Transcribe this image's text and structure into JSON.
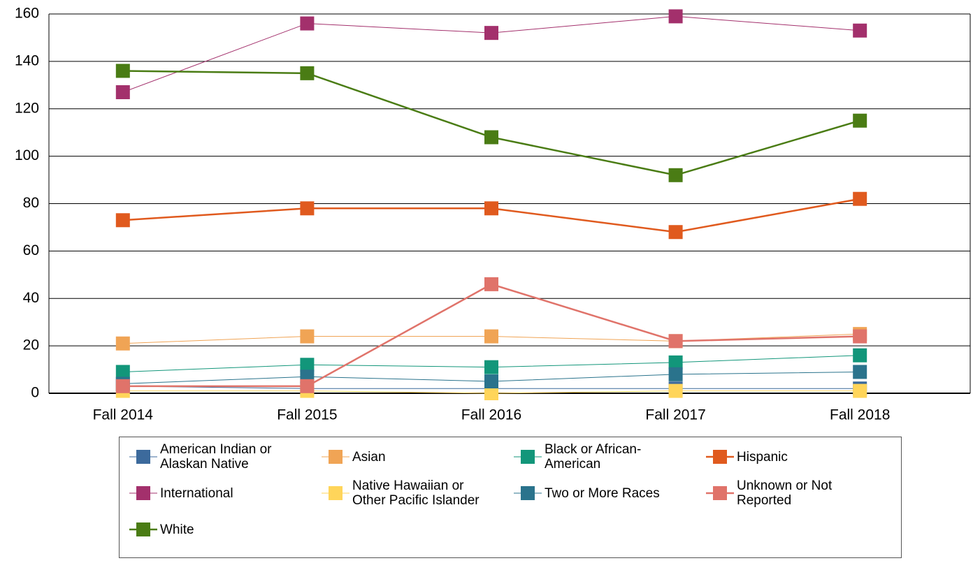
{
  "chart_data": {
    "type": "line",
    "categories": [
      "Fall 2014",
      "Fall 2015",
      "Fall 2016",
      "Fall 2017",
      "Fall 2018"
    ],
    "ylim": [
      0,
      160
    ],
    "yticks": [
      0,
      20,
      40,
      60,
      80,
      100,
      120,
      140,
      160
    ],
    "grid": true,
    "series": [
      {
        "name": "American Indian or Alaskan Native",
        "color": "#3c6a9c",
        "line_width": 1,
        "values": [
          3,
          2,
          2,
          2,
          2
        ]
      },
      {
        "name": "Asian",
        "color": "#f0a455",
        "line_width": 1,
        "values": [
          21,
          24,
          24,
          22,
          25
        ]
      },
      {
        "name": "Black or African-American",
        "color": "#12967a",
        "line_width": 1,
        "values": [
          9,
          12,
          11,
          13,
          16
        ]
      },
      {
        "name": "Hispanic",
        "color": "#e05a1e",
        "line_width": 2.5,
        "values": [
          73,
          78,
          78,
          68,
          82
        ]
      },
      {
        "name": "International",
        "color": "#a3306c",
        "line_width": 1,
        "values": [
          127,
          156,
          152,
          159,
          153
        ]
      },
      {
        "name": "Native Hawaiian or Other Pacific Islander",
        "color": "#ffd55a",
        "line_width": 1,
        "values": [
          1,
          1,
          0,
          1,
          1
        ]
      },
      {
        "name": "Two or More Races",
        "color": "#2a738c",
        "line_width": 1,
        "values": [
          4,
          7,
          5,
          8,
          9
        ]
      },
      {
        "name": "Unknown or Not Reported",
        "color": "#e0736a",
        "line_width": 2.5,
        "values": [
          3,
          3,
          46,
          22,
          24
        ]
      },
      {
        "name": "White",
        "color": "#4a7c14",
        "line_width": 2.5,
        "values": [
          136,
          135,
          108,
          92,
          115
        ]
      }
    ]
  }
}
